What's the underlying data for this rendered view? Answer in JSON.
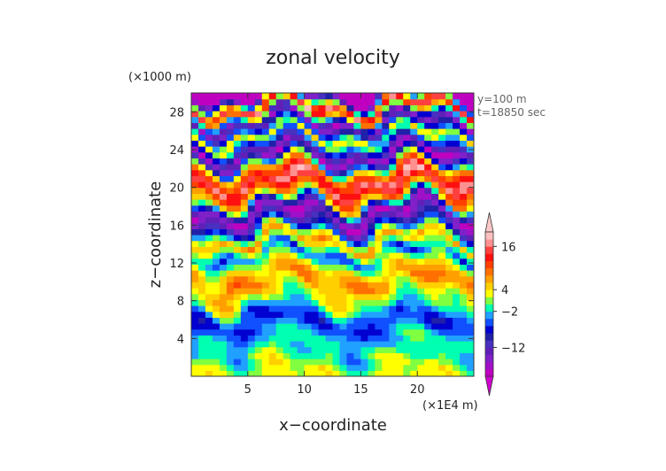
{
  "chart_data": {
    "type": "heatmap",
    "title": "zonal velocity",
    "xlabel": "x−coordinate",
    "ylabel": "z−coordinate",
    "x_multiplier": "(×1E4 m)",
    "y_multiplier": "(×1000 m)",
    "annotations": [
      "y=100 m",
      "t=18850 sec"
    ],
    "xlim": [
      0,
      25
    ],
    "ylim": [
      0,
      30
    ],
    "x_ticks": [
      5,
      10,
      15,
      20
    ],
    "y_ticks": [
      4,
      8,
      12,
      16,
      20,
      24,
      28
    ],
    "grid": false,
    "colorbar": {
      "position": "right",
      "extend": "both",
      "tick_labels": [
        "16",
        "4",
        "−2",
        "−12"
      ],
      "tick_values": [
        16,
        4,
        -2,
        -12
      ],
      "levels": [
        -20,
        -18,
        -16,
        -14,
        -12,
        -10,
        -8,
        -6,
        -4,
        -2,
        0,
        2,
        4,
        6,
        8,
        10,
        12,
        14,
        16,
        18
      ],
      "colors": [
        "#c000c0",
        "#a010c8",
        "#8020c8",
        "#6020b8",
        "#4830c0",
        "#2020a8",
        "#0000d0",
        "#1050ff",
        "#20a0ff",
        "#00ffb0",
        "#80ff40",
        "#ffff00",
        "#ffd000",
        "#ffa000",
        "#ff7000",
        "#ff4000",
        "#ff1010",
        "#ff4040",
        "#ff9090",
        "#ffc0c0"
      ],
      "under_color": "#d000d0",
      "over_color": "#ffc8c8"
    },
    "bands": [
      {
        "z": 0.0,
        "value": 2
      },
      {
        "z": 2.5,
        "value": 0
      },
      {
        "z": 4.5,
        "value": -4
      },
      {
        "z": 6.5,
        "value": -6
      },
      {
        "z": 8.5,
        "value": 3
      },
      {
        "z": 10.0,
        "value": 8
      },
      {
        "z": 11.5,
        "value": 4
      },
      {
        "z": 13.0,
        "value": -4
      },
      {
        "z": 14.5,
        "value": 6
      },
      {
        "z": 16.0,
        "value": -8
      },
      {
        "z": 17.5,
        "value": -18
      },
      {
        "z": 19.0,
        "value": 6
      },
      {
        "z": 20.5,
        "value": 17
      },
      {
        "z": 22.0,
        "value": 6
      },
      {
        "z": 23.5,
        "value": -18
      },
      {
        "z": 25.5,
        "value": 4
      },
      {
        "z": 27.0,
        "value": -16
      },
      {
        "z": 28.5,
        "value": 16
      },
      {
        "z": 30.0,
        "value": -20
      }
    ]
  }
}
